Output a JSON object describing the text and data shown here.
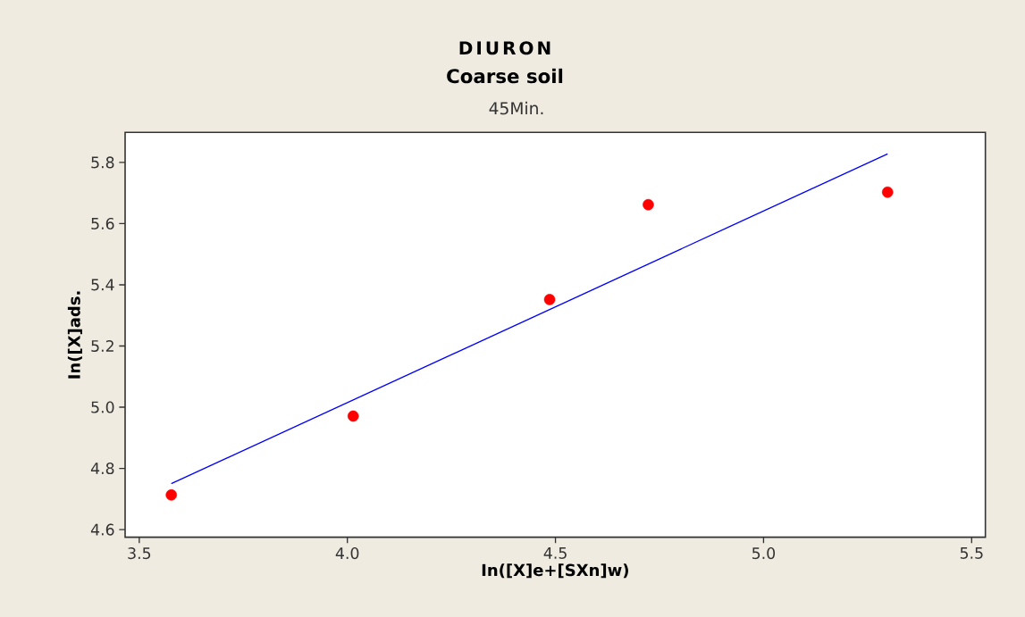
{
  "chart_data": {
    "type": "scatter",
    "title": "DIURON",
    "subtitle": "Coarse soil",
    "annotations": [
      "45Min."
    ],
    "xlabel": "In([X]e+[SXn]w)",
    "ylabel": "In([X]ads.",
    "xlim": [
      3.466,
      5.533
    ],
    "ylim": [
      4.575,
      5.898
    ],
    "xticks": [
      3.5,
      {
        "value": 4.0,
        "label": "4.0"
      },
      4.5,
      {
        "value": 5.0,
        "label": "5.0"
      },
      5.5
    ],
    "yticks": [
      4.6,
      4.8,
      {
        "value": 5.0,
        "label": "5.0"
      },
      5.2,
      5.4,
      5.6,
      5.8
    ],
    "grid": false,
    "series": [
      {
        "color": "#ff0000",
        "marker": "circle",
        "x": [
          3.577,
          4.014,
          4.486,
          4.723,
          5.298
        ],
        "values": [
          4.713,
          4.971,
          5.352,
          5.662,
          5.703
        ]
      },
      {
        "type": "line",
        "color": "#0000ff",
        "marker": "none",
        "line_style": "solid",
        "x": [
          3.577,
          5.298
        ],
        "values": [
          4.75,
          5.828
        ]
      }
    ]
  }
}
